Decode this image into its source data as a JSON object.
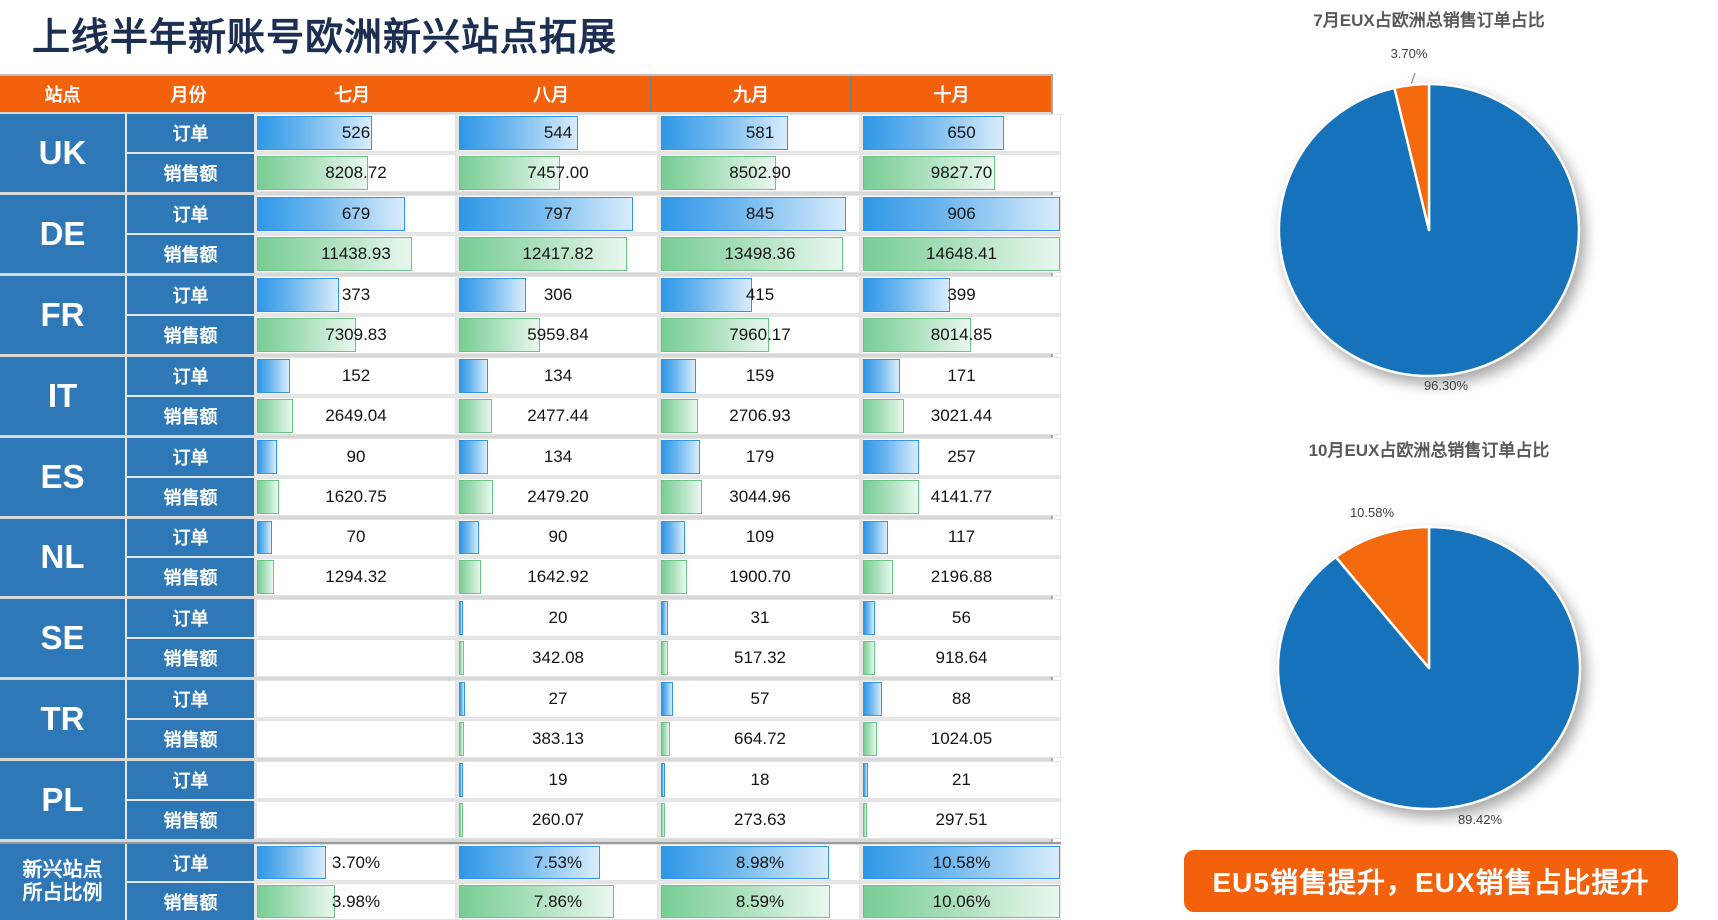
{
  "page_title": "上线半年新账号欧洲新兴站点拓展",
  "colors": {
    "accent_orange": "#F4610D",
    "row_header_blue": "#2E78B8",
    "pie_blue": "#1673BB",
    "pie_orange": "#F3690E",
    "bar_blue": "#2F97E6",
    "bar_green": "#77CD94"
  },
  "table": {
    "columns": [
      "站点",
      "月份",
      "七月",
      "八月",
      "九月",
      "十月"
    ],
    "scales": {
      "orders": 906,
      "sales": 14648.41,
      "pct_orders": 10.58,
      "pct_sales": 10.06
    },
    "sites": [
      {
        "code": "UK",
        "name": "UK",
        "rows": [
          {
            "label": "订单",
            "type": "orders",
            "values": [
              "526",
              "544",
              "581",
              "650"
            ]
          },
          {
            "label": "销售额",
            "type": "sales",
            "values": [
              "8208.72",
              "7457.00",
              "8502.90",
              "9827.70"
            ]
          }
        ]
      },
      {
        "code": "DE",
        "name": "DE",
        "rows": [
          {
            "label": "订单",
            "type": "orders",
            "values": [
              "679",
              "797",
              "845",
              "906"
            ]
          },
          {
            "label": "销售额",
            "type": "sales",
            "values": [
              "11438.93",
              "12417.82",
              "13498.36",
              "14648.41"
            ]
          }
        ]
      },
      {
        "code": "FR",
        "name": "FR",
        "rows": [
          {
            "label": "订单",
            "type": "orders",
            "values": [
              "373",
              "306",
              "415",
              "399"
            ]
          },
          {
            "label": "销售额",
            "type": "sales",
            "values": [
              "7309.83",
              "5959.84",
              "7960.17",
              "8014.85"
            ]
          }
        ]
      },
      {
        "code": "IT",
        "name": "IT",
        "rows": [
          {
            "label": "订单",
            "type": "orders",
            "values": [
              "152",
              "134",
              "159",
              "171"
            ]
          },
          {
            "label": "销售额",
            "type": "sales",
            "values": [
              "2649.04",
              "2477.44",
              "2706.93",
              "3021.44"
            ]
          }
        ]
      },
      {
        "code": "ES",
        "name": "ES",
        "rows": [
          {
            "label": "订单",
            "type": "orders",
            "values": [
              "90",
              "134",
              "179",
              "257"
            ]
          },
          {
            "label": "销售额",
            "type": "sales",
            "values": [
              "1620.75",
              "2479.20",
              "3044.96",
              "4141.77"
            ]
          }
        ]
      },
      {
        "code": "NL",
        "name": "NL",
        "rows": [
          {
            "label": "订单",
            "type": "orders",
            "values": [
              "70",
              "90",
              "109",
              "117"
            ]
          },
          {
            "label": "销售额",
            "type": "sales",
            "values": [
              "1294.32",
              "1642.92",
              "1900.70",
              "2196.88"
            ]
          }
        ]
      },
      {
        "code": "SE",
        "name": "SE",
        "rows": [
          {
            "label": "订单",
            "type": "orders",
            "values": [
              "",
              "20",
              "31",
              "56"
            ]
          },
          {
            "label": "销售额",
            "type": "sales",
            "values": [
              "",
              "342.08",
              "517.32",
              "918.64"
            ]
          }
        ]
      },
      {
        "code": "TR",
        "name": "TR",
        "rows": [
          {
            "label": "订单",
            "type": "orders",
            "values": [
              "",
              "27",
              "57",
              "88"
            ]
          },
          {
            "label": "销售额",
            "type": "sales",
            "values": [
              "",
              "383.13",
              "664.72",
              "1024.05"
            ]
          }
        ]
      },
      {
        "code": "PL",
        "name": "PL",
        "rows": [
          {
            "label": "订单",
            "type": "orders",
            "values": [
              "",
              "19",
              "18",
              "21"
            ]
          },
          {
            "label": "销售额",
            "type": "sales",
            "values": [
              "",
              "260.07",
              "273.63",
              "297.51"
            ]
          }
        ]
      },
      {
        "code": "PCT",
        "name": "新兴站点所占比例",
        "name_lines": [
          "新兴站点",
          "所占比例"
        ],
        "rows": [
          {
            "label": "订单",
            "type": "pct_orders",
            "values": [
              "3.70%",
              "7.53%",
              "8.98%",
              "10.58%"
            ]
          },
          {
            "label": "销售额",
            "type": "pct_sales",
            "values": [
              "3.98%",
              "7.86%",
              "8.59%",
              "10.06%"
            ]
          }
        ]
      }
    ]
  },
  "charts": {
    "pie1": {
      "title": "7月EUX占欧洲总销售订单占比",
      "labels": {
        "eux": "3.70%",
        "main": "96.30%"
      }
    },
    "pie2": {
      "title": "10月EUX占欧洲总销售订单占比",
      "labels": {
        "eux": "10.58%",
        "main": "89.42%"
      }
    }
  },
  "banner": {
    "text": "EU5销售提升，EUX销售占比提升"
  },
  "chart_data": [
    {
      "type": "table",
      "title": "上线半年新账号欧洲新兴站点拓展",
      "categories": [
        "七月",
        "八月",
        "九月",
        "十月"
      ],
      "series": [
        {
          "name": "UK-订单",
          "values": [
            526,
            544,
            581,
            650
          ]
        },
        {
          "name": "UK-销售额",
          "values": [
            8208.72,
            7457.0,
            8502.9,
            9827.7
          ]
        },
        {
          "name": "DE-订单",
          "values": [
            679,
            797,
            845,
            906
          ]
        },
        {
          "name": "DE-销售额",
          "values": [
            11438.93,
            12417.82,
            13498.36,
            14648.41
          ]
        },
        {
          "name": "FR-订单",
          "values": [
            373,
            306,
            415,
            399
          ]
        },
        {
          "name": "FR-销售额",
          "values": [
            7309.83,
            5959.84,
            7960.17,
            8014.85
          ]
        },
        {
          "name": "IT-订单",
          "values": [
            152,
            134,
            159,
            171
          ]
        },
        {
          "name": "IT-销售额",
          "values": [
            2649.04,
            2477.44,
            2706.93,
            3021.44
          ]
        },
        {
          "name": "ES-订单",
          "values": [
            90,
            134,
            179,
            257
          ]
        },
        {
          "name": "ES-销售额",
          "values": [
            1620.75,
            2479.2,
            3044.96,
            4141.77
          ]
        },
        {
          "name": "NL-订单",
          "values": [
            70,
            90,
            109,
            117
          ]
        },
        {
          "name": "NL-销售额",
          "values": [
            1294.32,
            1642.92,
            1900.7,
            2196.88
          ]
        },
        {
          "name": "SE-订单",
          "values": [
            null,
            20,
            31,
            56
          ]
        },
        {
          "name": "SE-销售额",
          "values": [
            null,
            342.08,
            517.32,
            918.64
          ]
        },
        {
          "name": "TR-订单",
          "values": [
            null,
            27,
            57,
            88
          ]
        },
        {
          "name": "TR-销售额",
          "values": [
            null,
            383.13,
            664.72,
            1024.05
          ]
        },
        {
          "name": "PL-订单",
          "values": [
            null,
            19,
            18,
            21
          ]
        },
        {
          "name": "PL-销售额",
          "values": [
            null,
            260.07,
            273.63,
            297.51
          ]
        },
        {
          "name": "新兴站点所占比例-订单",
          "unit": "%",
          "values": [
            3.7,
            7.53,
            8.98,
            10.58
          ]
        },
        {
          "name": "新兴站点所占比例-销售额",
          "unit": "%",
          "values": [
            3.98,
            7.86,
            8.59,
            10.06
          ]
        }
      ]
    },
    {
      "type": "pie",
      "title": "7月EUX占欧洲总销售订单占比",
      "values": [
        96.3,
        3.7
      ],
      "data_labels": [
        "96.30%",
        "3.70%"
      ],
      "colors": [
        "#1673BB",
        "#F3690E"
      ],
      "legend": "none"
    },
    {
      "type": "pie",
      "title": "10月EUX占欧洲总销售订单占比",
      "values": [
        89.42,
        10.58
      ],
      "data_labels": [
        "89.42%",
        "10.58%"
      ],
      "colors": [
        "#1673BB",
        "#F3690E"
      ],
      "legend": "none"
    }
  ]
}
